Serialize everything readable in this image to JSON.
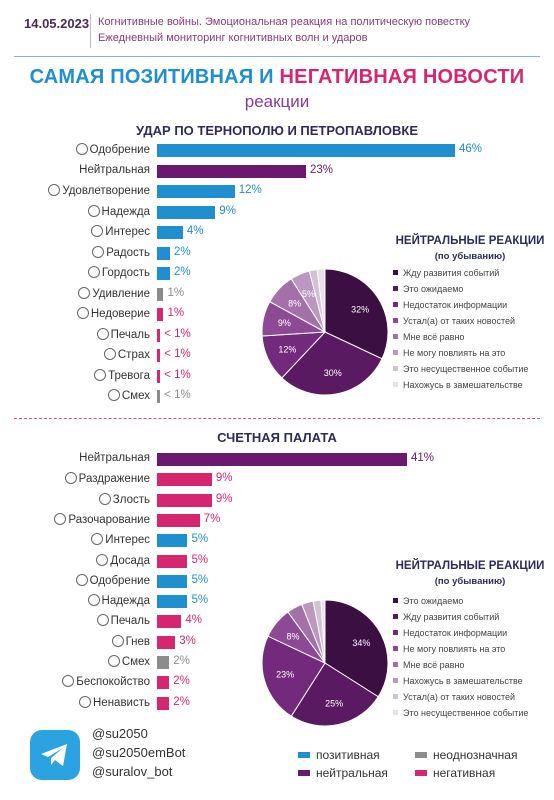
{
  "header": {
    "date": "14.05.2023",
    "line1": "Когнитивные войны. Эмоциональная реакция на политическую повестку",
    "line2": "Ежедневный мониторинг когнитивных волн и ударов"
  },
  "title": {
    "part_positive": "САМАЯ ПОЗИТИВНАЯ",
    "part_and": "И",
    "part_negative": "НЕГАТИВНАЯ",
    "part_news": "НОВОСТИ",
    "line2": "реакции"
  },
  "colors": {
    "positive": "#1f8fd0",
    "neutral": "#6a1a6e",
    "ambiguous": "#8c8c8c",
    "negative": "#d72670",
    "pie": [
      "#3b0f42",
      "#5a1a62",
      "#742a7c",
      "#8d4a94",
      "#a470aa",
      "#bc98c0",
      "#d3c2d6",
      "#e9e1ea"
    ]
  },
  "chart_data": [
    {
      "type": "bar",
      "title": "УДАР ПО ТЕРНОПОЛЮ И ПЕТРОПАВЛОВКЕ",
      "categories": [
        "Одобрение",
        "Нейтральная",
        "Удовлетворение",
        "Надежда",
        "Интерес",
        "Радость",
        "Гордость",
        "Удивление",
        "Недоверие",
        "Печаль",
        "Страх",
        "Тревога",
        "Смех"
      ],
      "values": [
        46,
        23,
        12,
        9,
        4,
        2,
        2,
        1,
        1,
        0.5,
        0.5,
        0.5,
        0.5
      ],
      "labels": [
        "46%",
        "23%",
        "12%",
        "9%",
        "4%",
        "2%",
        "2%",
        "1%",
        "1%",
        "< 1%",
        "< 1%",
        "< 1%",
        "< 1%"
      ],
      "kinds": [
        "positive",
        "neutral",
        "positive",
        "positive",
        "positive",
        "positive",
        "positive",
        "ambiguous",
        "negative",
        "negative",
        "negative",
        "negative",
        "ambiguous"
      ],
      "icons": [
        "heart-face-icon",
        "",
        "smile-icon",
        "praying-hands-icon",
        "thinking-icon",
        "grin-icon",
        "proud-icon",
        "surprised-icon",
        "skeptical-icon",
        "sad-icon",
        "fear-icon",
        "worried-icon",
        "laugh-icon"
      ]
    },
    {
      "type": "pie",
      "title": "НЕЙТРАЛЬНЫЕ РЕАКЦИИ",
      "subtitle": "(по убыванию)",
      "categories": [
        "Жду развития событий",
        "Это ожидаемо",
        "Недостаток информации",
        "Устал(а) от таких новостей",
        "Мне всё равно",
        "Не могу повлиять на это",
        "Это несущественное событие",
        "Нахожусь в замешательстве"
      ],
      "values": [
        32,
        30,
        12,
        9,
        8,
        5,
        2,
        2
      ],
      "labels": [
        "32%",
        "30%",
        "12%",
        "9%",
        "8%",
        "5%",
        "",
        ""
      ]
    },
    {
      "type": "bar",
      "title": "СЧЕТНАЯ ПАЛАТА",
      "categories": [
        "Нейтральная",
        "Раздражение",
        "Злость",
        "Разочарование",
        "Интерес",
        "Досада",
        "Одобрение",
        "Надежда",
        "Печаль",
        "Гнев",
        "Смех",
        "Беспокойство",
        "Ненависть"
      ],
      "values": [
        41,
        9,
        9,
        7,
        5,
        5,
        5,
        5,
        4,
        3,
        2,
        2,
        2
      ],
      "labels": [
        "41%",
        "9%",
        "9%",
        "7%",
        "5%",
        "5%",
        "5%",
        "5%",
        "4%",
        "3%",
        "2%",
        "2%",
        "2%"
      ],
      "kinds": [
        "neutral",
        "negative",
        "negative",
        "negative",
        "positive",
        "negative",
        "positive",
        "positive",
        "negative",
        "negative",
        "ambiguous",
        "negative",
        "negative"
      ],
      "icons": [
        "",
        "annoyed-icon",
        "angry-icon",
        "disappointed-icon",
        "thinking-icon",
        "frustrated-icon",
        "heart-face-icon",
        "praying-hands-icon",
        "sad-icon",
        "rage-icon",
        "laugh-icon",
        "anxious-icon",
        "hate-icon"
      ]
    },
    {
      "type": "pie",
      "title": "НЕЙТРАЛЬНЫЕ РЕАКЦИИ",
      "subtitle": "(по убыванию)",
      "categories": [
        "Это ожидаемо",
        "Жду развития событий",
        "Недостаток информации",
        "Не могу повлиять на это",
        "Мне всё равно",
        "Нахожусь в замешательстве",
        "Устал(а) от таких новостей",
        "Это несущественное событие"
      ],
      "values": [
        34,
        25,
        23,
        8,
        4,
        3,
        2,
        1
      ],
      "labels": [
        "34%",
        "25%",
        "23%",
        "8%",
        "",
        "",
        "",
        ""
      ]
    }
  ],
  "footer": {
    "handles": [
      "@su2050",
      "@su2050emBot",
      "@suralov_bot"
    ],
    "legend": {
      "positive": "позитивная",
      "ambiguous": "неоднозначная",
      "neutral": "нейтральная",
      "negative": "негативная"
    }
  }
}
